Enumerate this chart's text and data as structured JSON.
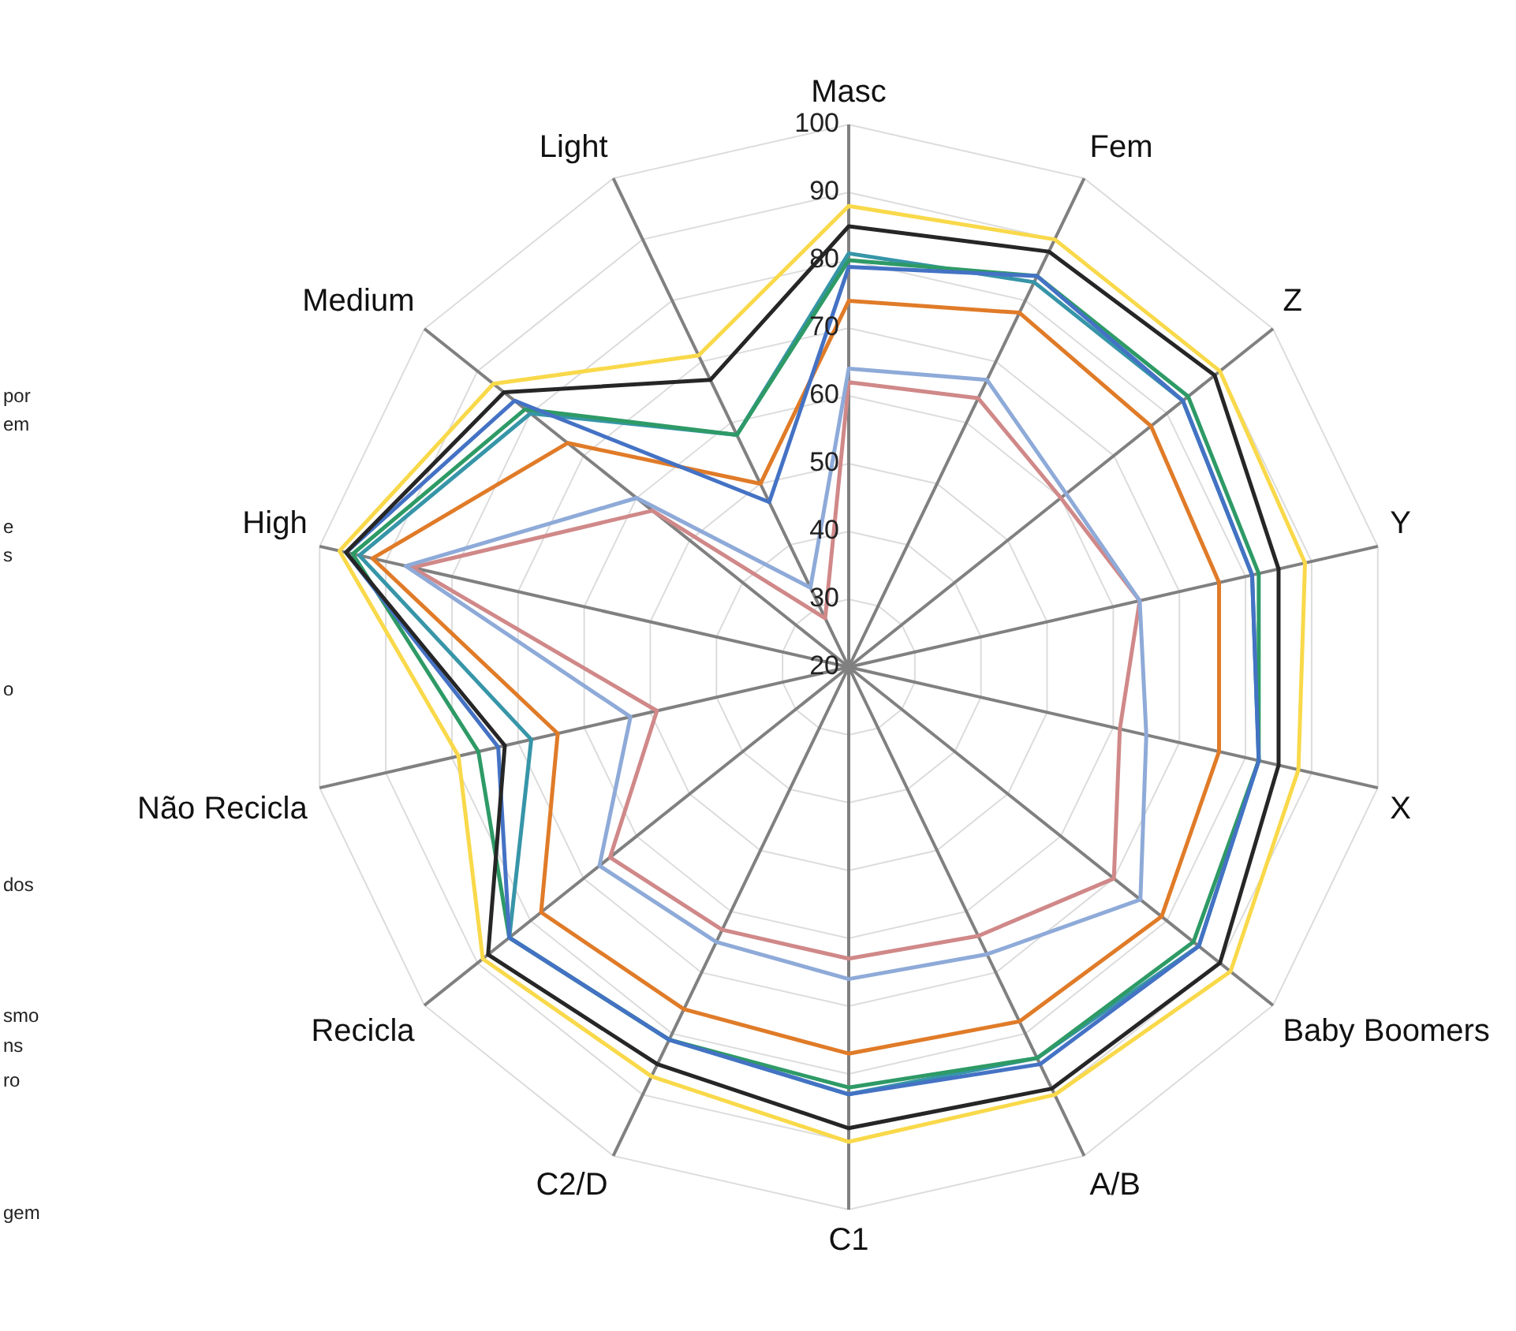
{
  "chart_data": {
    "type": "radar",
    "categories": [
      "Masc",
      "Fem",
      "Z",
      "Y",
      "X",
      "Baby Boomers",
      "A/B",
      "C1",
      "C2/D",
      "Recicla",
      "Não Recicla",
      "High",
      "Medium",
      "Light"
    ],
    "ylim": [
      20,
      100
    ],
    "yticks": [
      20,
      30,
      40,
      50,
      60,
      70,
      80,
      90,
      100
    ],
    "grid": true,
    "legend": false,
    "marker": "none",
    "line_style": "solid",
    "series": [
      {
        "color": "#f9d94a",
        "values": [
          88,
          90,
          90,
          89,
          88,
          92,
          90,
          90,
          87,
          89,
          79,
          97,
          87,
          71
        ]
      },
      {
        "color": "#262626",
        "values": [
          85,
          88,
          89,
          85,
          85,
          90,
          89,
          88,
          85,
          88,
          72,
          96,
          85,
          67
        ]
      },
      {
        "color": "#4472c4",
        "values": [
          79,
          84,
          83,
          81,
          82,
          86,
          85,
          83,
          81,
          84,
          73,
          96,
          83,
          47
        ]
      },
      {
        "color": "#2e9a66",
        "values": [
          80,
          84,
          84,
          82,
          82,
          85,
          84,
          82,
          81,
          84,
          76,
          95,
          81,
          58
        ]
      },
      {
        "color": "#3795a8",
        "values": [
          81,
          83,
          83,
          81,
          82,
          86,
          84,
          83,
          81,
          84,
          68,
          94,
          80,
          58
        ]
      },
      {
        "color": "#e07b28",
        "values": [
          74,
          78,
          77,
          76,
          76,
          79,
          78,
          77,
          76,
          78,
          64,
          92,
          73,
          50
        ]
      },
      {
        "color": "#8eaad8",
        "values": [
          64,
          67,
          61,
          64,
          65,
          75,
          67,
          66,
          65,
          67,
          53,
          87,
          60,
          33
        ]
      },
      {
        "color": "#d08888",
        "values": [
          62,
          64,
          60,
          64,
          61,
          70,
          64,
          63,
          63,
          65,
          49,
          86,
          57,
          28
        ]
      }
    ],
    "annotations": [
      "por",
      "em",
      "e",
      "s",
      "o",
      "dos",
      "smo",
      "ns",
      "ro",
      "gem"
    ]
  }
}
